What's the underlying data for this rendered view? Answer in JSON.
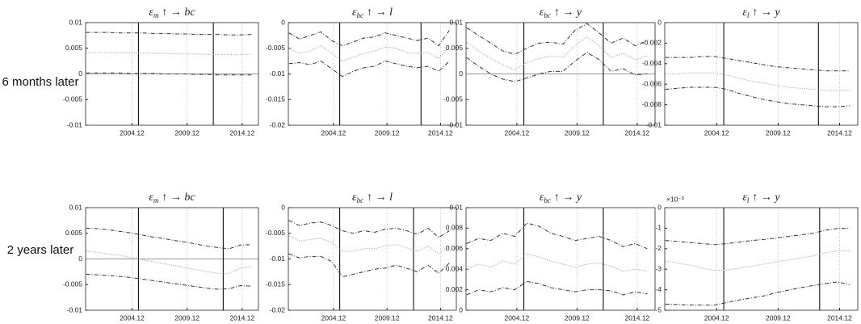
{
  "row_labels": [
    "6 months later",
    "2 years later"
  ],
  "chart_data": [
    {
      "type": "line",
      "title": {
        "symbol": "ε",
        "sub": "m",
        "rest": "↑ →  bc"
      },
      "x": [
        2000.75,
        2001.75,
        2002.75,
        2003.75,
        2004.75,
        2005.75,
        2006.75,
        2007.75,
        2008.75,
        2009.75,
        2010.75,
        2011.75,
        2012.75,
        2013.75,
        2014.75,
        2015.75
      ],
      "xlim": [
        2000.7,
        2016.4
      ],
      "xticks": [
        {
          "value": 2004.92,
          "label": "2004.12"
        },
        {
          "value": 2009.92,
          "label": "2009.12"
        },
        {
          "value": 2014.92,
          "label": "2014.12"
        }
      ],
      "ylim": [
        -0.01,
        0.01
      ],
      "yticks": [
        -0.01,
        -0.005,
        0,
        0.005,
        0.01
      ],
      "grid": true,
      "vlines": [
        2005.5,
        2012.3
      ],
      "series": [
        {
          "color": "#333333",
          "dash": "dashdot",
          "values": [
            0.0081,
            0.0081,
            0.0081,
            0.008,
            0.008,
            0.008,
            0.0079,
            0.0079,
            0.0078,
            0.0078,
            0.0077,
            0.0077,
            0.0077,
            0.0076,
            0.0076,
            0.0077
          ]
        },
        {
          "color": "#8fb0a8",
          "dash": "dotted",
          "values": [
            0.0042,
            0.0042,
            0.0042,
            0.0041,
            0.0041,
            0.0041,
            0.004,
            0.004,
            0.0039,
            0.0039,
            0.0039,
            0.0038,
            0.0038,
            0.0038,
            0.0038,
            0.0038
          ]
        },
        {
          "color": "#333333",
          "dash": "dashdot",
          "values": [
            0.0002,
            0.0002,
            0.0002,
            0.0002,
            0.0001,
            0.0001,
            0.0001,
            0,
            0,
            0,
            -0.0001,
            -0.0001,
            -0.0002,
            -0.0002,
            -0.0002,
            -0.0002
          ]
        }
      ]
    },
    {
      "type": "line",
      "title": {
        "symbol": "ε",
        "sub": "bc",
        "rest": "↑ →  l"
      },
      "x": [
        2000.75,
        2001.75,
        2002.75,
        2003.75,
        2004.75,
        2005.75,
        2006.75,
        2007.75,
        2008.75,
        2009.75,
        2010.75,
        2011.75,
        2012.75,
        2013.75,
        2014.75,
        2015.75
      ],
      "xlim": [
        2000.7,
        2016.4
      ],
      "xticks": [
        {
          "value": 2004.92,
          "label": "2004.12"
        },
        {
          "value": 2009.92,
          "label": "2009.12"
        },
        {
          "value": 2014.92,
          "label": "2014.12"
        }
      ],
      "ylim": [
        -0.02,
        0
      ],
      "yticks": [
        -0.02,
        -0.015,
        -0.01,
        -0.005,
        0
      ],
      "grid": true,
      "vlines": [
        2005.5,
        2013.1
      ],
      "series": [
        {
          "color": "#333333",
          "dash": "dashdot",
          "values": [
            -0.002,
            -0.0032,
            -0.0025,
            -0.0018,
            -0.0035,
            -0.0045,
            -0.0038,
            -0.003,
            -0.0028,
            -0.002,
            -0.0025,
            -0.003,
            -0.0035,
            -0.003,
            -0.0045,
            -0.0015
          ]
        },
        {
          "color": "#8fb0a8",
          "dash": "dotted",
          "values": [
            -0.005,
            -0.006,
            -0.0055,
            -0.0045,
            -0.006,
            -0.0075,
            -0.0068,
            -0.006,
            -0.0055,
            -0.0048,
            -0.005,
            -0.0058,
            -0.006,
            -0.0058,
            -0.007,
            -0.0045
          ]
        },
        {
          "color": "#333333",
          "dash": "dashdot",
          "values": [
            -0.008,
            -0.0078,
            -0.0082,
            -0.0075,
            -0.009,
            -0.0105,
            -0.0095,
            -0.0088,
            -0.0085,
            -0.0075,
            -0.008,
            -0.0085,
            -0.0088,
            -0.0085,
            -0.0095,
            -0.0075
          ]
        }
      ]
    },
    {
      "type": "line",
      "title": {
        "symbol": "ε",
        "sub": "bc",
        "rest": "↑ →  y"
      },
      "x": [
        2000.75,
        2001.75,
        2002.75,
        2003.75,
        2004.75,
        2005.75,
        2006.75,
        2007.75,
        2008.75,
        2009.75,
        2010.75,
        2011.75,
        2012.75,
        2013.75,
        2014.75,
        2015.75
      ],
      "xlim": [
        2000.7,
        2016.4
      ],
      "xticks": [
        {
          "value": 2004.92,
          "label": "2004.12"
        },
        {
          "value": 2009.92,
          "label": "2009.12"
        },
        {
          "value": 2014.92,
          "label": "2014.12"
        }
      ],
      "ylim": [
        -0.01,
        0.01
      ],
      "yticks": [
        -0.01,
        -0.005,
        0,
        0.005,
        0.01
      ],
      "grid": true,
      "vlines": [
        2005.5,
        2012.1
      ],
      "series": [
        {
          "color": "#333333",
          "dash": "dashdot",
          "values": [
            0.009,
            0.0075,
            0.006,
            0.0045,
            0.0038,
            0.005,
            0.006,
            0.0062,
            0.0058,
            0.0085,
            0.0098,
            0.008,
            0.006,
            0.007,
            0.0055,
            0.0065
          ]
        },
        {
          "color": "#8fb0a8",
          "dash": "dotted",
          "values": [
            0.0062,
            0.0045,
            0.003,
            0.0018,
            0.0008,
            0.0022,
            0.003,
            0.0035,
            0.0032,
            0.0055,
            0.0072,
            0.0055,
            0.0032,
            0.004,
            0.0028,
            0.0035
          ]
        },
        {
          "color": "#333333",
          "dash": "dashdot",
          "values": [
            0.0032,
            0.0015,
            0,
            -0.001,
            -0.0015,
            -0.0008,
            0,
            0.0005,
            0.0005,
            0.0025,
            0.0042,
            0.0028,
            0.0005,
            0.001,
            -0.0002,
            0
          ]
        }
      ]
    },
    {
      "type": "line",
      "title": {
        "symbol": "ε",
        "sub": "l",
        "rest": "↑ →  y"
      },
      "x": [
        2000.75,
        2001.75,
        2002.75,
        2003.75,
        2004.75,
        2005.75,
        2006.75,
        2007.75,
        2008.75,
        2009.75,
        2010.75,
        2011.75,
        2012.75,
        2013.75,
        2014.75,
        2015.75
      ],
      "xlim": [
        2000.7,
        2016.4
      ],
      "xticks": [
        {
          "value": 2004.92,
          "label": "2004.12"
        },
        {
          "value": 2009.92,
          "label": "2009.12"
        },
        {
          "value": 2014.92,
          "label": "2014.12"
        }
      ],
      "ylim": [
        -0.01,
        0
      ],
      "yticks": [
        -0.01,
        -0.008,
        -0.006,
        -0.004,
        -0.002,
        0
      ],
      "grid": true,
      "vlines": [
        2005.5,
        2013.2
      ],
      "series": [
        {
          "color": "#333333",
          "dash": "dashdot",
          "values": [
            -0.0034,
            -0.0034,
            -0.0034,
            -0.0033,
            -0.0033,
            -0.0035,
            -0.0037,
            -0.0039,
            -0.0041,
            -0.0043,
            -0.0044,
            -0.0045,
            -0.0046,
            -0.0047,
            -0.0047,
            -0.0047
          ]
        },
        {
          "color": "#8fb0a8",
          "dash": "dotted",
          "values": [
            -0.005,
            -0.005,
            -0.0049,
            -0.0049,
            -0.0049,
            -0.0051,
            -0.0054,
            -0.0057,
            -0.0059,
            -0.0061,
            -0.0063,
            -0.0064,
            -0.0065,
            -0.0066,
            -0.0066,
            -0.0066
          ]
        },
        {
          "color": "#333333",
          "dash": "dashdot",
          "values": [
            -0.0065,
            -0.0064,
            -0.0063,
            -0.0063,
            -0.0063,
            -0.0065,
            -0.0069,
            -0.0072,
            -0.0075,
            -0.0077,
            -0.0079,
            -0.008,
            -0.0081,
            -0.0082,
            -0.0082,
            -0.0081
          ]
        }
      ]
    },
    {
      "type": "line",
      "title": {
        "symbol": "ε",
        "sub": "m",
        "rest": "↑ →  bc"
      },
      "x": [
        2000.75,
        2001.75,
        2002.75,
        2003.75,
        2004.75,
        2005.75,
        2006.75,
        2007.75,
        2008.75,
        2009.75,
        2010.75,
        2011.75,
        2012.75,
        2013.75,
        2014.75,
        2015.75
      ],
      "xlim": [
        2000.7,
        2016.4
      ],
      "xticks": [
        {
          "value": 2004.92,
          "label": "2004.12"
        },
        {
          "value": 2009.92,
          "label": "2009.12"
        },
        {
          "value": 2014.92,
          "label": "2014.12"
        }
      ],
      "ylim": [
        -0.01,
        0.01
      ],
      "yticks": [
        -0.01,
        -0.005,
        0,
        0.005,
        0.01
      ],
      "grid": true,
      "vlines": [
        2005.5,
        2013.2
      ],
      "series": [
        {
          "color": "#333333",
          "dash": "dashdot",
          "values": [
            0.006,
            0.0059,
            0.0057,
            0.0054,
            0.0051,
            0.0047,
            0.0043,
            0.004,
            0.0036,
            0.0033,
            0.0029,
            0.0025,
            0.0022,
            0.002,
            0.0027,
            0.0028
          ]
        },
        {
          "color": "#8fb0a8",
          "dash": "dotted",
          "values": [
            0.0015,
            0.0013,
            0.001,
            0.0007,
            0.0003,
            -0.0001,
            -0.0005,
            -0.0009,
            -0.0013,
            -0.0017,
            -0.0021,
            -0.0025,
            -0.0028,
            -0.0028,
            -0.0018,
            -0.0015
          ]
        },
        {
          "color": "#333333",
          "dash": "dashdot",
          "values": [
            -0.003,
            -0.0031,
            -0.0032,
            -0.0034,
            -0.0036,
            -0.0039,
            -0.0042,
            -0.0045,
            -0.0048,
            -0.0051,
            -0.0054,
            -0.0057,
            -0.0059,
            -0.0058,
            -0.0052,
            -0.0053
          ]
        }
      ]
    },
    {
      "type": "line",
      "title": {
        "symbol": "ε",
        "sub": "bc",
        "rest": "↑ →  l"
      },
      "x": [
        2000.75,
        2001.75,
        2002.75,
        2003.75,
        2004.75,
        2005.75,
        2006.75,
        2007.75,
        2008.75,
        2009.75,
        2010.75,
        2011.75,
        2012.75,
        2013.75,
        2014.75,
        2015.75
      ],
      "xlim": [
        2000.7,
        2016.4
      ],
      "xticks": [
        {
          "value": 2004.92,
          "label": "2004.12"
        },
        {
          "value": 2009.92,
          "label": "2009.12"
        },
        {
          "value": 2014.92,
          "label": "2014.12"
        }
      ],
      "ylim": [
        -0.02,
        0
      ],
      "yticks": [
        -0.02,
        -0.015,
        -0.01,
        -0.005,
        0
      ],
      "grid": true,
      "vlines": [
        2005.5,
        2012.4
      ],
      "series": [
        {
          "color": "#333333",
          "dash": "dashdot",
          "values": [
            -0.0025,
            -0.0035,
            -0.003,
            -0.0028,
            -0.0035,
            -0.0045,
            -0.005,
            -0.0045,
            -0.0048,
            -0.0042,
            -0.004,
            -0.0045,
            -0.0052,
            -0.004,
            -0.0058,
            -0.0045
          ]
        },
        {
          "color": "#8fb0a8",
          "dash": "dotted",
          "values": [
            -0.0055,
            -0.0065,
            -0.0062,
            -0.006,
            -0.0068,
            -0.0085,
            -0.0085,
            -0.008,
            -0.008,
            -0.0075,
            -0.0072,
            -0.0078,
            -0.0085,
            -0.0075,
            -0.009,
            -0.0075
          ]
        },
        {
          "color": "#333333",
          "dash": "dashdot",
          "values": [
            -0.009,
            -0.0098,
            -0.0095,
            -0.0095,
            -0.0105,
            -0.0135,
            -0.013,
            -0.0125,
            -0.012,
            -0.0118,
            -0.0112,
            -0.0118,
            -0.0125,
            -0.0112,
            -0.0128,
            -0.0108
          ]
        }
      ]
    },
    {
      "type": "line",
      "title": {
        "symbol": "ε",
        "sub": "bc",
        "rest": "↑ →  y"
      },
      "x": [
        2000.75,
        2001.75,
        2002.75,
        2003.75,
        2004.75,
        2005.75,
        2006.75,
        2007.75,
        2008.75,
        2009.75,
        2010.75,
        2011.75,
        2012.75,
        2013.75,
        2014.75,
        2015.75
      ],
      "xlim": [
        2000.7,
        2016.4
      ],
      "xticks": [
        {
          "value": 2004.92,
          "label": "2004.12"
        },
        {
          "value": 2009.92,
          "label": "2009.12"
        },
        {
          "value": 2014.92,
          "label": "2014.12"
        }
      ],
      "ylim": [
        0,
        0.01
      ],
      "yticks": [
        0,
        0.002,
        0.004,
        0.006,
        0.008,
        0.01
      ],
      "grid": true,
      "vlines": [
        2005.5,
        2012.1
      ],
      "series": [
        {
          "color": "#333333",
          "dash": "dashdot",
          "values": [
            0.0065,
            0.007,
            0.0068,
            0.0075,
            0.0072,
            0.0085,
            0.0082,
            0.0075,
            0.0072,
            0.0068,
            0.007,
            0.0072,
            0.0068,
            0.0062,
            0.0065,
            0.006
          ]
        },
        {
          "color": "#8fb0a8",
          "dash": "dotted",
          "values": [
            0.004,
            0.0045,
            0.0042,
            0.0048,
            0.0045,
            0.0055,
            0.0052,
            0.0048,
            0.0045,
            0.0042,
            0.0045,
            0.0046,
            0.0043,
            0.0038,
            0.004,
            0.0038
          ]
        },
        {
          "color": "#333333",
          "dash": "dashdot",
          "values": [
            0.0015,
            0.002,
            0.0018,
            0.0022,
            0.002,
            0.0028,
            0.0026,
            0.0022,
            0.002,
            0.0018,
            0.002,
            0.002,
            0.0019,
            0.0015,
            0.0018,
            0.0016
          ]
        }
      ]
    },
    {
      "type": "line",
      "title": {
        "symbol": "ε",
        "sub": "l",
        "rest": "↑ →  y"
      },
      "y_multiplier": "×10⁻³",
      "x": [
        2000.75,
        2001.75,
        2002.75,
        2003.75,
        2004.75,
        2005.75,
        2006.75,
        2007.75,
        2008.75,
        2009.75,
        2010.75,
        2011.75,
        2012.75,
        2013.75,
        2014.75,
        2015.75
      ],
      "xlim": [
        2000.7,
        2016.4
      ],
      "xticks": [
        {
          "value": 2004.92,
          "label": "2004.12"
        },
        {
          "value": 2009.92,
          "label": "2009.12"
        },
        {
          "value": 2014.92,
          "label": "2014.12"
        }
      ],
      "ylim": [
        -5,
        0
      ],
      "yticks": [
        -5,
        -4,
        -3,
        -2,
        -1,
        0
      ],
      "grid": true,
      "vlines": [
        2005.5,
        2013.3
      ],
      "series": [
        {
          "color": "#333333",
          "dash": "dashdot",
          "values": [
            -1.6,
            -1.65,
            -1.7,
            -1.75,
            -1.8,
            -1.75,
            -1.68,
            -1.6,
            -1.55,
            -1.48,
            -1.4,
            -1.33,
            -1.25,
            -1.1,
            -1.02,
            -1.0
          ]
        },
        {
          "color": "#8fb0a8",
          "dash": "dotted",
          "values": [
            -2.6,
            -2.7,
            -2.8,
            -2.95,
            -3.05,
            -3.05,
            -2.95,
            -2.85,
            -2.75,
            -2.65,
            -2.55,
            -2.45,
            -2.35,
            -2.2,
            -2.1,
            -2.1
          ]
        },
        {
          "color": "#333333",
          "dash": "dashdot",
          "values": [
            -4.7,
            -4.72,
            -4.74,
            -4.75,
            -4.75,
            -4.62,
            -4.5,
            -4.4,
            -4.3,
            -4.15,
            -4.02,
            -3.9,
            -3.8,
            -3.7,
            -3.62,
            -3.75
          ]
        }
      ]
    }
  ]
}
